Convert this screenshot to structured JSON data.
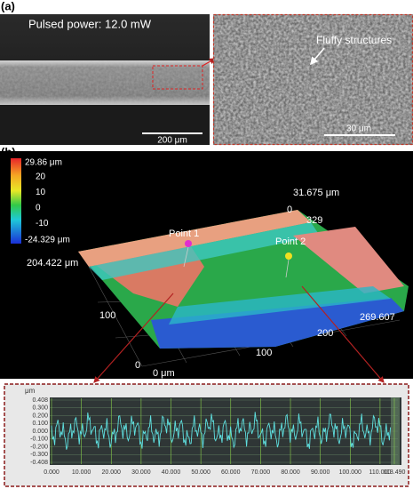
{
  "panel_a": {
    "label": "(a)",
    "sem_title": "Pulsed power: 12.0 mW",
    "sem_scale": "200 μm",
    "zoom_annotation": "Fluffy structures",
    "zoom_scale": "30 μm"
  },
  "panel_b": {
    "label": "(b)",
    "colorbar": {
      "max": "29.86 μm",
      "ticks": [
        "20",
        "10",
        "0",
        "-10"
      ],
      "min": "-24.329 μm"
    },
    "axes": {
      "z_top": "31.675 μm",
      "z_zero": "0",
      "z_tick": "329",
      "y_max": "204.422 μm",
      "y_mid": "100",
      "y_zero": "0",
      "x_zero": "0 μm",
      "x_mid": "100",
      "x_tick": "200",
      "x_max": "269.607"
    },
    "points": [
      "Point 1",
      "Point 2"
    ],
    "profile": {
      "unit": "μm",
      "yticks": [
        "0.408",
        "0.300",
        "0.200",
        "0.100",
        "0.000",
        "-0.100",
        "-0.200",
        "-0.300",
        "-0.408"
      ],
      "xticks": [
        "0.000",
        "10.000",
        "20.000",
        "30.000",
        "40.000",
        "50.000",
        "60.000",
        "70.000",
        "80.000",
        "90.000",
        "100.000",
        "110.000",
        "113.490"
      ]
    }
  }
}
